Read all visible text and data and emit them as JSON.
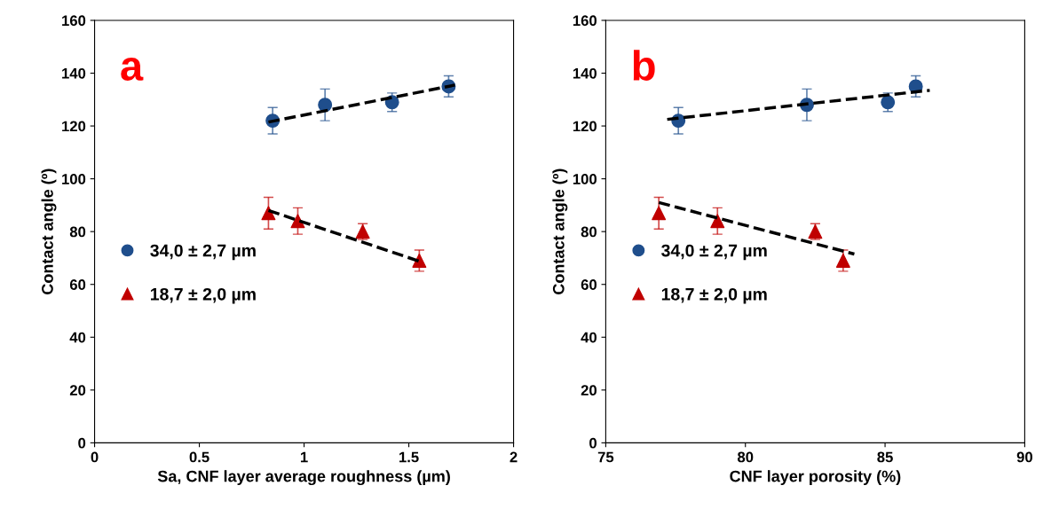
{
  "chart_data": [
    {
      "type": "scatter",
      "annotations": [
        "a"
      ],
      "xlabel": "Sa, CNF layer average roughness (µm)",
      "ylabel": "Contact angle (º)",
      "xlim": [
        0,
        2
      ],
      "xticks": [
        0,
        0.5,
        1,
        1.5,
        2
      ],
      "ylim": [
        0,
        160
      ],
      "yticks": [
        0,
        20,
        40,
        60,
        80,
        100,
        120,
        140,
        160
      ],
      "grid": false,
      "legend": "left",
      "series": [
        {
          "name": "34,0 ± 2,7 µm",
          "color": "#1f4e8c",
          "marker": "circle",
          "x": [
            0.85,
            1.1,
            1.42,
            1.69
          ],
          "values": [
            122,
            128,
            129,
            135
          ],
          "errors": [
            5,
            6,
            3.5,
            4
          ]
        },
        {
          "name": "18,7 ± 2,0 µm",
          "color": "#c00000",
          "marker": "triangle",
          "x": [
            0.83,
            0.97,
            1.28,
            1.55
          ],
          "values": [
            87,
            84,
            80,
            69
          ],
          "errors": [
            6,
            5,
            3,
            4
          ]
        },
        {
          "type": "line",
          "color": "#000000",
          "line_style": "dashed",
          "marker": "none",
          "x": [
            0.83,
            1.72
          ],
          "values": [
            121.5,
            135.5
          ]
        },
        {
          "type": "line",
          "color": "#000000",
          "line_style": "dashed",
          "marker": "none",
          "x": [
            0.83,
            1.56
          ],
          "values": [
            88,
            68.5
          ]
        }
      ]
    },
    {
      "type": "scatter",
      "annotations": [
        "b"
      ],
      "xlabel": "CNF layer porosity (%)",
      "ylabel": "Contact angle (º)",
      "xlim": [
        75,
        90
      ],
      "xticks": [
        75,
        80,
        85,
        90
      ],
      "ylim": [
        0,
        160
      ],
      "yticks": [
        0,
        20,
        40,
        60,
        80,
        100,
        120,
        140,
        160
      ],
      "grid": false,
      "legend": "left",
      "series": [
        {
          "name": "34,0 ± 2,7 µm",
          "color": "#1f4e8c",
          "marker": "circle",
          "x": [
            77.6,
            82.2,
            85.1,
            86.1
          ],
          "values": [
            122,
            128,
            129,
            135
          ],
          "errors": [
            5,
            6,
            3.5,
            4
          ]
        },
        {
          "name": "18,7 ± 2,0 µm",
          "color": "#c00000",
          "marker": "triangle",
          "x": [
            76.9,
            79.0,
            82.5,
            83.5
          ],
          "values": [
            87,
            84,
            80,
            69
          ],
          "errors": [
            6,
            5,
            3,
            4
          ]
        },
        {
          "type": "line",
          "color": "#000000",
          "line_style": "dashed",
          "marker": "none",
          "x": [
            77.2,
            86.6
          ],
          "values": [
            122.5,
            133.5
          ]
        },
        {
          "type": "line",
          "color": "#000000",
          "line_style": "dashed",
          "marker": "none",
          "x": [
            76.9,
            83.9
          ],
          "values": [
            91,
            71.5
          ]
        }
      ]
    }
  ]
}
